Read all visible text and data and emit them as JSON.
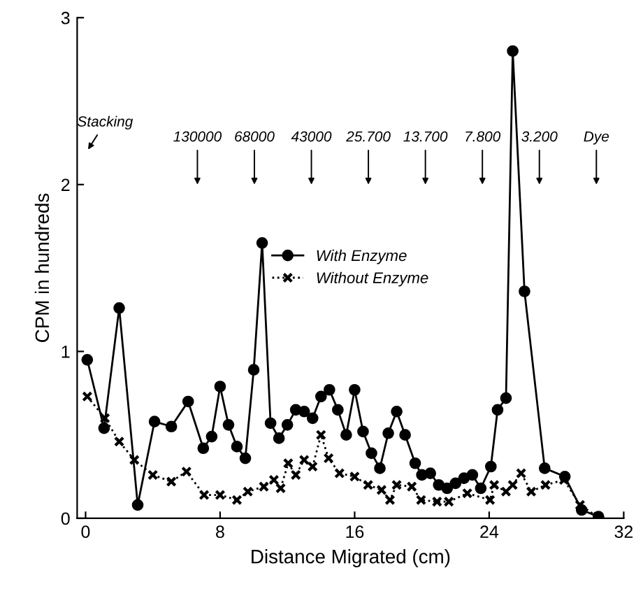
{
  "chart_data": {
    "type": "line",
    "xlabel": "Distance Migrated (cm)",
    "ylabel": "CPM in hundreds",
    "xlim": [
      -0.5,
      32
    ],
    "ylim": [
      0,
      3
    ],
    "xticks": [
      0,
      8,
      16,
      24,
      32
    ],
    "yticks": [
      0,
      1,
      2,
      3
    ],
    "grid": false,
    "legend": "center",
    "series": [
      {
        "name": "With Enzyme",
        "color": "#000000",
        "marker": "circle",
        "line_style": "solid",
        "x": [
          0.1,
          1.1,
          2.0,
          3.1,
          4.1,
          5.1,
          6.1,
          7.0,
          7.5,
          8.0,
          8.5,
          9.0,
          9.5,
          10.0,
          10.5,
          11.0,
          11.5,
          12.0,
          12.5,
          13.0,
          13.5,
          14.0,
          14.5,
          15.0,
          15.5,
          16.0,
          16.5,
          17.0,
          17.5,
          18.0,
          18.5,
          19.0,
          19.6,
          20.0,
          20.5,
          21.0,
          21.5,
          22.0,
          22.5,
          23.0,
          23.5,
          24.1,
          24.5,
          25.0,
          25.4,
          26.1,
          27.3,
          28.5,
          29.5,
          30.5
        ],
        "values": [
          0.95,
          0.54,
          1.26,
          0.08,
          0.58,
          0.55,
          0.7,
          0.42,
          0.49,
          0.79,
          0.56,
          0.43,
          0.36,
          0.89,
          1.65,
          0.57,
          0.48,
          0.56,
          0.65,
          0.64,
          0.6,
          0.73,
          0.77,
          0.65,
          0.5,
          0.77,
          0.52,
          0.39,
          0.3,
          0.51,
          0.64,
          0.5,
          0.33,
          0.26,
          0.27,
          0.2,
          0.18,
          0.21,
          0.24,
          0.26,
          0.18,
          0.31,
          0.65,
          0.72,
          2.8,
          1.36,
          0.3,
          0.25,
          0.05,
          0.01
        ]
      },
      {
        "name": "Without Enzyme",
        "color": "#000000",
        "marker": "cross",
        "line_style": "dotted",
        "x": [
          0.1,
          1.15,
          2.0,
          2.9,
          4.0,
          5.1,
          6.0,
          7.05,
          8.0,
          9.0,
          9.65,
          10.6,
          11.2,
          11.6,
          12.05,
          12.5,
          13.0,
          13.5,
          14.0,
          14.45,
          15.1,
          16.0,
          16.8,
          17.6,
          18.1,
          18.5,
          19.4,
          19.95,
          20.9,
          21.6,
          22.7,
          24.05,
          24.3,
          25.0,
          25.4,
          25.9,
          26.5,
          27.35,
          28.45,
          29.4,
          30.45
        ],
        "values": [
          0.73,
          0.6,
          0.46,
          0.35,
          0.26,
          0.22,
          0.28,
          0.14,
          0.14,
          0.11,
          0.16,
          0.19,
          0.23,
          0.18,
          0.33,
          0.26,
          0.35,
          0.31,
          0.5,
          0.36,
          0.27,
          0.25,
          0.2,
          0.17,
          0.11,
          0.2,
          0.19,
          0.11,
          0.1,
          0.1,
          0.15,
          0.11,
          0.2,
          0.16,
          0.2,
          0.27,
          0.16,
          0.2,
          0.23,
          0.08,
          0.01
        ]
      }
    ],
    "annotations": [
      "Stacking",
      "130000",
      "68000",
      "43000",
      "25.700",
      "13.700",
      "7.800",
      "3.200",
      "Dye"
    ]
  }
}
